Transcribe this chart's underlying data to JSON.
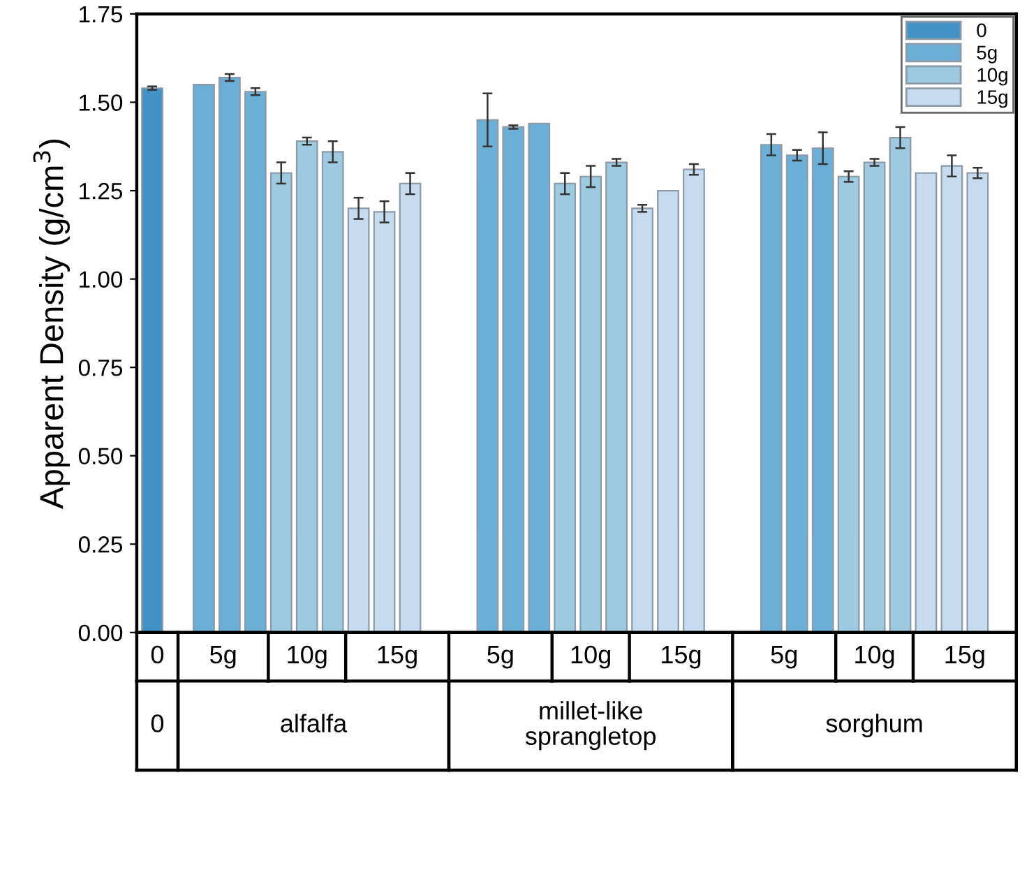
{
  "chart_data": {
    "type": "bar",
    "ylabel": "Apparent Density (g/cm$^{3}$)",
    "categories": [
      "0",
      null,
      null,
      "5g",
      null,
      null,
      "10g",
      null,
      null,
      "15g",
      null,
      null,
      null,
      null,
      "5g",
      null,
      null,
      "10g",
      null,
      null,
      "15g",
      null,
      null,
      null,
      null,
      "5g",
      null,
      null,
      "10g",
      null,
      null,
      "15g",
      null
    ],
    "series": [
      {
        "name": "0",
        "color": "#4292c6",
        "values": [
          1.54,
          null,
          null,
          null,
          null,
          null,
          null,
          null,
          null,
          null,
          null,
          null,
          null,
          null,
          null,
          null,
          null,
          null,
          null,
          null,
          null,
          null,
          null,
          null,
          null,
          null,
          null,
          null,
          null,
          null,
          null,
          null,
          null
        ],
        "errors": [
          0.005,
          null,
          null,
          null,
          null,
          null,
          null,
          null,
          null,
          null,
          null,
          null,
          null,
          null,
          null,
          null,
          null,
          null,
          null,
          null,
          null,
          null,
          null,
          null,
          null,
          null,
          null,
          null,
          null,
          null,
          null,
          null,
          null
        ]
      },
      {
        "name": "5g",
        "color": "#6baed6",
        "values": [
          null,
          null,
          1.55,
          1.57,
          1.53,
          null,
          null,
          null,
          null,
          null,
          null,
          null,
          null,
          1.45,
          1.43,
          1.44,
          null,
          null,
          null,
          null,
          null,
          null,
          null,
          null,
          1.38,
          1.35,
          1.37,
          null,
          null,
          null,
          null,
          null,
          null
        ],
        "errors": [
          null,
          null,
          null,
          0.01,
          0.01,
          null,
          null,
          null,
          null,
          null,
          null,
          null,
          null,
          0.075,
          0.005,
          null,
          null,
          null,
          null,
          null,
          null,
          null,
          null,
          null,
          0.03,
          0.015,
          0.045,
          null,
          null,
          null,
          null,
          null,
          null
        ]
      },
      {
        "name": "10g",
        "color": "#9ecae1",
        "values": [
          null,
          null,
          null,
          null,
          null,
          1.3,
          1.39,
          1.36,
          null,
          null,
          null,
          null,
          null,
          null,
          null,
          null,
          1.27,
          1.29,
          1.33,
          null,
          null,
          null,
          null,
          null,
          null,
          null,
          null,
          1.29,
          1.33,
          1.4,
          null,
          null,
          null
        ],
        "errors": [
          null,
          null,
          null,
          null,
          null,
          0.03,
          0.01,
          0.03,
          null,
          null,
          null,
          null,
          null,
          null,
          null,
          null,
          0.03,
          0.03,
          0.01,
          null,
          null,
          null,
          null,
          null,
          null,
          null,
          null,
          0.015,
          0.01,
          0.03,
          null,
          null,
          null
        ]
      },
      {
        "name": "15g",
        "color": "#c6dbef",
        "values": [
          null,
          null,
          null,
          null,
          null,
          null,
          null,
          null,
          1.2,
          1.19,
          1.27,
          null,
          null,
          null,
          null,
          null,
          null,
          null,
          null,
          1.2,
          1.25,
          1.31,
          null,
          null,
          null,
          null,
          null,
          null,
          null,
          null,
          1.3,
          1.32,
          1.3
        ],
        "errors": [
          null,
          null,
          null,
          null,
          null,
          null,
          null,
          null,
          0.03,
          0.03,
          0.03,
          null,
          null,
          null,
          null,
          null,
          null,
          null,
          null,
          0.01,
          null,
          0.015,
          null,
          null,
          null,
          null,
          null,
          null,
          null,
          null,
          null,
          0.03,
          0.015
        ]
      }
    ],
    "ylim": [
      0,
      1.75
    ],
    "yticks": [
      {
        "value": 0,
        "label": "0.00"
      },
      {
        "value": 0.25,
        "label": "0.25"
      },
      {
        "value": 0.5,
        "label": "0.50"
      },
      {
        "value": 0.75,
        "label": "0.75"
      },
      {
        "value": 1.0,
        "label": "1.00"
      },
      {
        "value": 1.25,
        "label": "1.25"
      },
      {
        "value": 1.5,
        "label": "1.50"
      },
      {
        "value": 1.75,
        "label": "1.75"
      }
    ],
    "annotations": [
      "0",
      "alfalfa",
      "millet-like\nsprangletop",
      "sorghum"
    ],
    "legend": "top right",
    "grid": false
  }
}
